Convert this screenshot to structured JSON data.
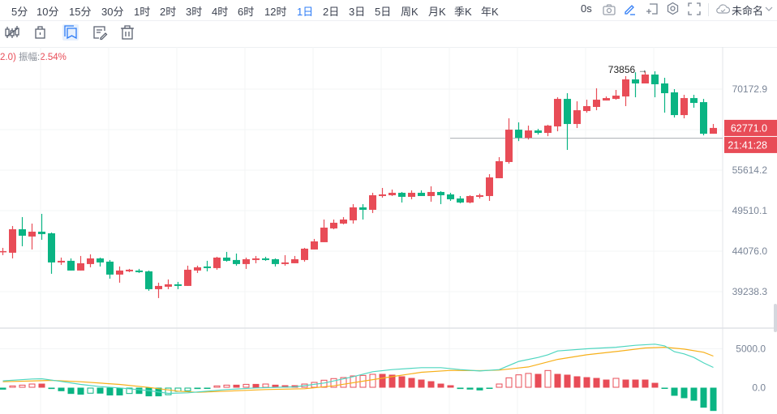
{
  "periods": [
    {
      "label": "5分"
    },
    {
      "label": "10分"
    },
    {
      "label": "15分"
    },
    {
      "label": "30分"
    },
    {
      "label": "1时"
    },
    {
      "label": "2时"
    },
    {
      "label": "3时"
    },
    {
      "label": "4时"
    },
    {
      "label": "6时"
    },
    {
      "label": "12时"
    },
    {
      "label": "1日",
      "active": true
    },
    {
      "label": "2日"
    },
    {
      "label": "3日"
    },
    {
      "label": "5日"
    },
    {
      "label": "周K"
    },
    {
      "label": "月K"
    },
    {
      "label": "季K"
    },
    {
      "label": "年K"
    }
  ],
  "top_right": {
    "countdown": "0s",
    "layout_name": "未命名"
  },
  "toolbar_icons": [
    "candlestick-icon",
    "lock-icon",
    "bookmark-icon",
    "edit-note-icon",
    "trash-icon"
  ],
  "info": {
    "prefix": "2.0)",
    "amplitude_label": "振幅:",
    "amplitude_value": "2.54%"
  },
  "colors": {
    "up": "#e84c57",
    "down": "#0ab483",
    "accent": "#2e7cf6",
    "dif": "#4fd6c0",
    "dea": "#f7b01a"
  },
  "price_axis": {
    "labels": [
      {
        "value": 70172.9,
        "text": "70172.9"
      },
      {
        "value": 55614.2,
        "text": "55614.2"
      },
      {
        "value": 49510.1,
        "text": "49510.1"
      },
      {
        "value": 44076.0,
        "text": "44076.0"
      },
      {
        "value": 39238.3,
        "text": "39238.3"
      }
    ],
    "current_price": "62771.0",
    "current_time": "21:41:28",
    "max_marker": "73856",
    "hline_price": 60950
  },
  "macd_axis": {
    "labels": [
      {
        "value": 5000,
        "text": "5000.0"
      },
      {
        "value": 0,
        "text": "0.0"
      }
    ]
  },
  "candles": [
    [
      44000,
      44488,
      43566,
      44076
    ],
    [
      43871,
      47370,
      43163,
      46932
    ],
    [
      46932,
      48598,
      44695,
      46067
    ],
    [
      45960,
      47701,
      44281,
      46605
    ],
    [
      46605,
      49051,
      45534,
      46282
    ],
    [
      46389,
      46497,
      41297,
      42664
    ],
    [
      42664,
      43264,
      42368,
      42864
    ],
    [
      42864,
      43163,
      41685,
      41685
    ],
    [
      41685,
      43465,
      41685,
      42565
    ],
    [
      42467,
      43668,
      42074,
      43163
    ],
    [
      43163,
      43264,
      42171,
      42664
    ],
    [
      42763,
      42963,
      40725,
      41202
    ],
    [
      41202,
      42171,
      40255,
      41685
    ],
    [
      41588,
      41879,
      41489,
      41782
    ],
    [
      41685,
      41879,
      41393,
      41489
    ],
    [
      41588,
      41685,
      39329,
      39513
    ],
    [
      39513,
      40255,
      38515,
      39882
    ],
    [
      39790,
      40631,
      39513,
      40068
    ],
    [
      40068,
      40348,
      39513,
      39882
    ],
    [
      39882,
      42270,
      39882,
      41782
    ],
    [
      41685,
      42270,
      41393,
      42074
    ],
    [
      42171,
      42864,
      41588,
      41976
    ],
    [
      41976,
      43364,
      41782,
      43264
    ],
    [
      43264,
      43974,
      42763,
      42864
    ],
    [
      42963,
      43769,
      42270,
      42467
    ],
    [
      42467,
      43264,
      41879,
      43063
    ],
    [
      42963,
      43465,
      42565,
      43163
    ],
    [
      43163,
      43364,
      42864,
      42963
    ],
    [
      43063,
      43163,
      42171,
      42467
    ],
    [
      42467,
      43566,
      42270,
      42664
    ],
    [
      42565,
      43465,
      42565,
      43063
    ],
    [
      42963,
      44488,
      42763,
      44385
    ],
    [
      44281,
      45641,
      44281,
      45323
    ],
    [
      45218,
      48259,
      45218,
      47151
    ],
    [
      47041,
      48259,
      46932,
      47813
    ],
    [
      47701,
      48598,
      47591,
      48259
    ],
    [
      48147,
      50440,
      47701,
      49973
    ],
    [
      49973,
      50440,
      48259,
      49625
    ],
    [
      49625,
      52109,
      49166,
      51746
    ],
    [
      51626,
      52839,
      51387,
      51867
    ],
    [
      51746,
      52595,
      51626,
      52109
    ],
    [
      52109,
      52230,
      50675,
      51507
    ],
    [
      51507,
      52473,
      51148,
      52109
    ],
    [
      52109,
      52473,
      51626,
      51626
    ],
    [
      51626,
      53087,
      50793,
      52230
    ],
    [
      52230,
      52351,
      50440,
      51746
    ],
    [
      51867,
      52109,
      50911,
      51148
    ],
    [
      51267,
      51626,
      50557,
      50675
    ],
    [
      50675,
      51746,
      50557,
      51626
    ],
    [
      51507,
      51987,
      51267,
      51746
    ],
    [
      51626,
      54971,
      50911,
      54462
    ],
    [
      54335,
      57723,
      54335,
      57055
    ],
    [
      56923,
      64529,
      56659,
      62462
    ],
    [
      62462,
      63784,
      60446,
      61019
    ],
    [
      61019,
      63192,
      60732,
      62317
    ],
    [
      62317,
      62607,
      61593,
      61882
    ],
    [
      61882,
      63340,
      61306,
      63192
    ],
    [
      63046,
      68550,
      62172,
      68232
    ],
    [
      68232,
      69358,
      58936,
      63487
    ],
    [
      63487,
      67757,
      62753,
      66046
    ],
    [
      65893,
      68073,
      65588,
      66829
    ],
    [
      66675,
      70336,
      66046,
      68073
    ],
    [
      67914,
      68711,
      67914,
      68391
    ],
    [
      68232,
      70010,
      68073,
      68873
    ],
    [
      68711,
      72834,
      66829,
      72159
    ],
    [
      72159,
      73650,
      68550,
      71325
    ],
    [
      71325,
      73685,
      71325,
      73172
    ],
    [
      73172,
      73856,
      68550,
      71159
    ],
    [
      71325,
      72495,
      65588,
      69358
    ],
    [
      69520,
      70173,
      64679,
      65132
    ],
    [
      65132,
      69034,
      64529,
      68391
    ],
    [
      68391,
      69034,
      66525,
      67444
    ],
    [
      67600,
      68232,
      61450,
      61738
    ],
    [
      61738,
      63487,
      61738,
      62771
    ]
  ],
  "macd": {
    "hist": [
      -250,
      280,
      380,
      520,
      520,
      -170,
      -450,
      -800,
      -900,
      -760,
      -760,
      -1000,
      -1000,
      -800,
      -800,
      -1110,
      -1110,
      -960,
      -520,
      -450,
      -170,
      -60,
      280,
      380,
      380,
      480,
      480,
      520,
      380,
      310,
      310,
      520,
      730,
      1010,
      1220,
      1350,
      1560,
      1630,
      1770,
      1770,
      1670,
      1460,
      1250,
      1040,
      830,
      520,
      310,
      -170,
      -240,
      -350,
      -100,
      520,
      1320,
      1700,
      1880,
      1770,
      2260,
      1770,
      1670,
      1460,
      1350,
      1250,
      1040,
      1250,
      1040,
      1040,
      1040,
      620,
      -150,
      -1040,
      -1350,
      -1670,
      -2570,
      -2990
    ],
    "dif": [
      [
        0,
        870
      ],
      [
        3,
        1110
      ],
      [
        4,
        1150
      ],
      [
        6,
        800
      ],
      [
        8,
        420
      ],
      [
        10,
        140
      ],
      [
        12,
        -30
      ],
      [
        15,
        -380
      ],
      [
        17,
        -730
      ],
      [
        19,
        -660
      ],
      [
        21,
        -450
      ],
      [
        23,
        -240
      ],
      [
        26,
        -30
      ],
      [
        30,
        100
      ],
      [
        33,
        590
      ],
      [
        36,
        1420
      ],
      [
        38,
        2050
      ],
      [
        40,
        2320
      ],
      [
        43,
        2570
      ],
      [
        45,
        2570
      ],
      [
        47,
        2320
      ],
      [
        49,
        2150
      ],
      [
        51,
        2320
      ],
      [
        53,
        3370
      ],
      [
        55,
        3890
      ],
      [
        56,
        4230
      ],
      [
        57,
        4720
      ],
      [
        60,
        5000
      ],
      [
        63,
        5200
      ],
      [
        65,
        5450
      ],
      [
        67,
        5590
      ],
      [
        68,
        5380
      ],
      [
        69,
        4620
      ],
      [
        70,
        4340
      ],
      [
        71,
        3890
      ],
      [
        72,
        3190
      ],
      [
        73,
        2600
      ]
    ],
    "dea": [
      [
        0,
        760
      ],
      [
        4,
        900
      ],
      [
        5,
        940
      ],
      [
        8,
        760
      ],
      [
        12,
        420
      ],
      [
        15,
        30
      ],
      [
        18,
        -450
      ],
      [
        20,
        -590
      ],
      [
        23,
        -450
      ],
      [
        27,
        -240
      ],
      [
        31,
        -140
      ],
      [
        34,
        240
      ],
      [
        37,
        830
      ],
      [
        40,
        1420
      ],
      [
        43,
        1980
      ],
      [
        46,
        2220
      ],
      [
        49,
        2190
      ],
      [
        51,
        2260
      ],
      [
        54,
        2670
      ],
      [
        57,
        3640
      ],
      [
        60,
        4230
      ],
      [
        63,
        4650
      ],
      [
        66,
        5100
      ],
      [
        68,
        5200
      ],
      [
        70,
        4960
      ],
      [
        72,
        4550
      ],
      [
        73,
        4060
      ]
    ]
  }
}
